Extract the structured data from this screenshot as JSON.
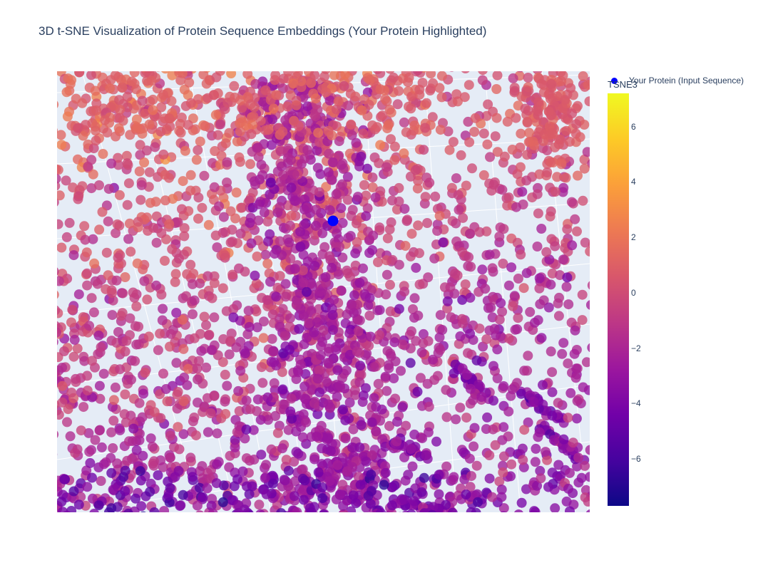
{
  "chart_data": {
    "type": "scatter",
    "title": "3D t-SNE Visualization of Protein Sequence Embeddings (Your Protein Highlighted)",
    "legend": {
      "placement": "top-right",
      "entries": [
        {
          "name": "Your Protein (Input Sequence)",
          "color": "#0000ff"
        }
      ]
    },
    "colorbar": {
      "title": "TSNE3",
      "range": [
        -7.7,
        7.2
      ],
      "tick_values": [
        6,
        4,
        2,
        0,
        -2,
        -4,
        -6
      ],
      "tick_labels": [
        "6",
        "4",
        "2",
        "0",
        "−2",
        "−4",
        "−6"
      ],
      "colorscale": [
        "#0d0887",
        "#46039f",
        "#7201a8",
        "#9c179e",
        "#bd3786",
        "#d8576b",
        "#ed7953",
        "#fb9f3a",
        "#fdca26",
        "#f0f921"
      ]
    },
    "scene": {
      "background": "#e5ecf6",
      "grid": true
    },
    "highlight_color": "#0000ff"
  }
}
